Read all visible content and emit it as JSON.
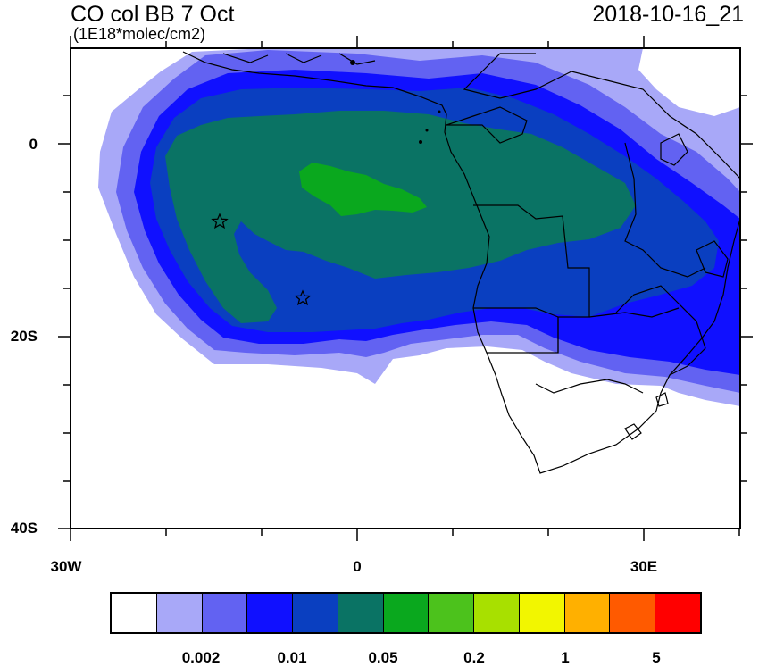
{
  "title": "CO col BB 7 Oct",
  "units": "(1E18*molec/cm2)",
  "date": "2018-10-16_21",
  "axes": {
    "lon_labels": [
      "30W",
      "0",
      "30E"
    ],
    "lat_labels": [
      "0",
      "20S",
      "40S"
    ]
  },
  "colorbar": {
    "colors": [
      "#ffffff",
      "#a8a8f8",
      "#6262f2",
      "#1010ff",
      "#0a3fc0",
      "#0a7364",
      "#0aa81e",
      "#4cc21c",
      "#a8e000",
      "#f2f600",
      "#ffb000",
      "#ff5a00",
      "#ff0000"
    ],
    "labels": [
      "0.002",
      "0.01",
      "0.05",
      "0.2",
      "1",
      "5"
    ]
  },
  "markers": {
    "star_icon_count": 2
  },
  "colors": {
    "light_blue": "#a8a8f8",
    "mid_blue": "#6262f2",
    "blue": "#1010ff",
    "dark_blue": "#0a3fc0",
    "teal": "#0a7364",
    "green": "#0aa81e"
  }
}
